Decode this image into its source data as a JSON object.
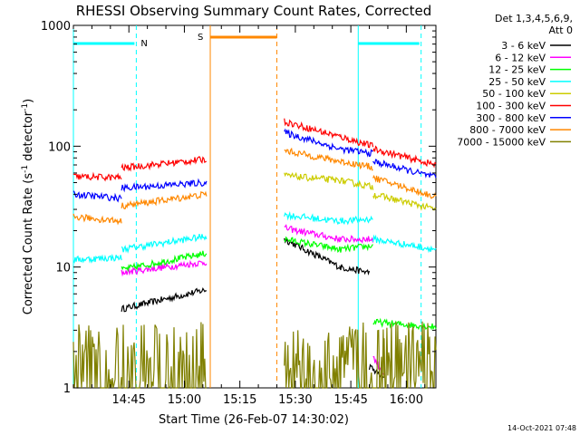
{
  "chart_data": {
    "type": "line",
    "title": "RHESSI Observing Summary Count Rates, Corrected",
    "xlabel": "Start Time (26-Feb-07 14:30:02)",
    "ylabel": "Corrected Count Rate (s⁻¹ detector⁻¹)",
    "ylabel_main": "Corrected Count Rate (s",
    "ylabel_exp1": "-1",
    "ylabel_mid": " detector",
    "ylabel_exp2": "-1",
    "ylabel_end": ")",
    "yscale": "log",
    "ylim": [
      1,
      1000
    ],
    "xlim_minutes": [
      0,
      98
    ],
    "x_ticks": [
      {
        "minute": 15,
        "label": "14:45"
      },
      {
        "minute": 30,
        "label": "15:00"
      },
      {
        "minute": 45,
        "label": "15:15"
      },
      {
        "minute": 60,
        "label": "15:30"
      },
      {
        "minute": 75,
        "label": "15:45"
      },
      {
        "minute": 90,
        "label": "16:00"
      }
    ],
    "y_ticks": [
      {
        "value": 1,
        "label": "1"
      },
      {
        "value": 10,
        "label": "10"
      },
      {
        "value": 100,
        "label": "100"
      },
      {
        "value": 1000,
        "label": "1000"
      }
    ],
    "legend_header": [
      "Det 1,3,4,5,6,9,",
      "Att 0"
    ],
    "legend_position": "right",
    "footer_date": "14-Oct-2021 07:48",
    "night_periods": [
      {
        "label": "N",
        "start": 0,
        "end": 17
      },
      {
        "label": "",
        "start": 77,
        "end": 94
      }
    ],
    "saa_periods": [
      {
        "label": "S",
        "start": 37,
        "end": 55
      }
    ],
    "series": [
      {
        "name": "3 - 6 keV",
        "color": "#000000",
        "segments": [
          {
            "x0": 13,
            "x1": 36,
            "y0": 4.5,
            "y1": 6.5
          },
          {
            "x0": 57,
            "x1": 72,
            "y0": 17,
            "y1": 10
          },
          {
            "x0": 72,
            "x1": 80,
            "y0": 10,
            "y1": 9
          },
          {
            "x0": 80,
            "x1": 84,
            "y0": 1.5,
            "y1": 1.2
          }
        ]
      },
      {
        "name": "6 - 12 keV",
        "color": "#ff00ff",
        "segments": [
          {
            "x0": 13,
            "x1": 36,
            "y0": 9,
            "y1": 11
          },
          {
            "x0": 57,
            "x1": 72,
            "y0": 21,
            "y1": 17
          },
          {
            "x0": 72,
            "x1": 81,
            "y0": 17,
            "y1": 17
          },
          {
            "x0": 81,
            "x1": 84,
            "y0": 1.8,
            "y1": 1.3
          }
        ]
      },
      {
        "name": "12 - 25 keV",
        "color": "#00ff00",
        "segments": [
          {
            "x0": 13,
            "x1": 36,
            "y0": 9.5,
            "y1": 13
          },
          {
            "x0": 57,
            "x1": 72,
            "y0": 17,
            "y1": 14
          },
          {
            "x0": 72,
            "x1": 81,
            "y0": 14,
            "y1": 15
          },
          {
            "x0": 81,
            "x1": 98,
            "y0": 3.5,
            "y1": 3.2
          }
        ]
      },
      {
        "name": "25 - 50 keV",
        "color": "#00ffff",
        "segments": [
          {
            "x0": 0,
            "x1": 13,
            "y0": 11.5,
            "y1": 12
          },
          {
            "x0": 13,
            "x1": 36,
            "y0": 14,
            "y1": 18
          },
          {
            "x0": 57,
            "x1": 72,
            "y0": 27,
            "y1": 24
          },
          {
            "x0": 72,
            "x1": 81,
            "y0": 24,
            "y1": 25
          },
          {
            "x0": 81,
            "x1": 98,
            "y0": 17,
            "y1": 14
          }
        ]
      },
      {
        "name": "50 - 100 keV",
        "color": "#cccc00",
        "segments": [
          {
            "x0": 57,
            "x1": 72,
            "y0": 57,
            "y1": 52
          },
          {
            "x0": 72,
            "x1": 81,
            "y0": 52,
            "y1": 46
          },
          {
            "x0": 81,
            "x1": 98,
            "y0": 40,
            "y1": 30
          }
        ]
      },
      {
        "name": "100 - 300 keV",
        "color": "#ff0000",
        "segments": [
          {
            "x0": 0,
            "x1": 13,
            "y0": 56,
            "y1": 55
          },
          {
            "x0": 13,
            "x1": 36,
            "y0": 66,
            "y1": 78
          },
          {
            "x0": 57,
            "x1": 72,
            "y0": 160,
            "y1": 120
          },
          {
            "x0": 72,
            "x1": 81,
            "y0": 120,
            "y1": 100
          },
          {
            "x0": 81,
            "x1": 98,
            "y0": 95,
            "y1": 70
          }
        ]
      },
      {
        "name": "300 - 800 keV",
        "color": "#0000ff",
        "segments": [
          {
            "x0": 0,
            "x1": 13,
            "y0": 40,
            "y1": 37
          },
          {
            "x0": 13,
            "x1": 36,
            "y0": 45,
            "y1": 50
          },
          {
            "x0": 57,
            "x1": 72,
            "y0": 130,
            "y1": 95
          },
          {
            "x0": 72,
            "x1": 81,
            "y0": 95,
            "y1": 87
          },
          {
            "x0": 81,
            "x1": 98,
            "y0": 75,
            "y1": 55
          }
        ]
      },
      {
        "name": "800 - 7000 keV",
        "color": "#ff8800",
        "segments": [
          {
            "x0": 0,
            "x1": 13,
            "y0": 26,
            "y1": 24
          },
          {
            "x0": 13,
            "x1": 36,
            "y0": 32,
            "y1": 40
          },
          {
            "x0": 57,
            "x1": 72,
            "y0": 92,
            "y1": 75
          },
          {
            "x0": 72,
            "x1": 81,
            "y0": 75,
            "y1": 67
          },
          {
            "x0": 81,
            "x1": 98,
            "y0": 55,
            "y1": 38
          }
        ]
      },
      {
        "name": "7000 - 15000 keV",
        "color": "#808000",
        "segments": [
          {
            "x0": 0,
            "x1": 36,
            "y0": 1.9,
            "y1": 1.9
          },
          {
            "x0": 57,
            "x1": 84,
            "y0": 2,
            "y1": 2
          },
          {
            "x0": 84,
            "x1": 98,
            "y0": 2.2,
            "y1": 2
          }
        ]
      }
    ]
  }
}
